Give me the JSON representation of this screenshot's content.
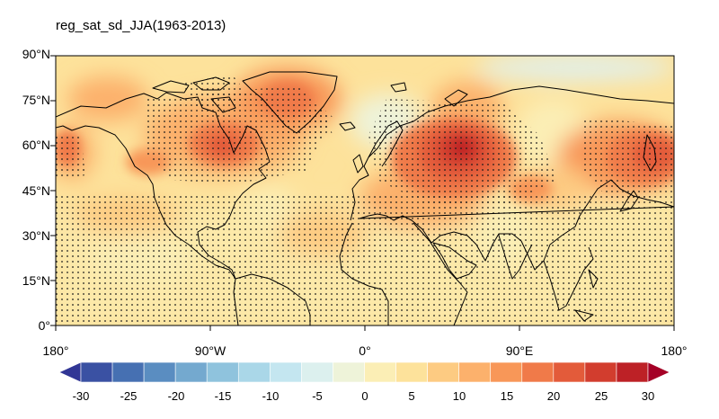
{
  "title": "reg_sat_sd_JJA(1963-2013)",
  "lat_labels": [
    "90°N",
    "75°N",
    "60°N",
    "45°N",
    "30°N",
    "15°N",
    "0°"
  ],
  "lon_labels": [
    "180°",
    "90°W",
    "0°",
    "90°E",
    "180°"
  ],
  "colorbar": {
    "ticks": [
      "-30",
      "-25",
      "-20",
      "-15",
      "-10",
      "-5",
      "0",
      "5",
      "10",
      "15",
      "20",
      "25",
      "30"
    ],
    "colors": [
      "#313695",
      "#3a51a3",
      "#4670b2",
      "#5a8dc1",
      "#74a9cf",
      "#8fc3dd",
      "#aad7e8",
      "#c4e6f0",
      "#dcf0ee",
      "#eef3d9",
      "#fbeeb5",
      "#fde29b",
      "#fdcb82",
      "#fcb16c",
      "#f89758",
      "#f07a49",
      "#e35b3a",
      "#d23d2e",
      "#bd2126",
      "#a50026"
    ]
  },
  "chart_data": {
    "type": "heatmap",
    "title": "reg_sat_sd_JJA(1963-2013)",
    "extent": {
      "lon": [
        -180,
        180
      ],
      "lat": [
        0,
        90
      ]
    },
    "contour_levels": [
      -30,
      -25,
      -20,
      -15,
      -10,
      -5,
      0,
      5,
      10,
      15,
      20,
      25,
      30
    ],
    "stippling": "significant areas marked with dots",
    "hotspots": [
      {
        "region": "Western Siberia",
        "lon": 62,
        "lat": 58,
        "value": 26
      },
      {
        "region": "Northeast Asia / Okhotsk",
        "lon": 152,
        "lat": 55,
        "value": 18
      },
      {
        "region": "Eastern Canada / Hudson Bay",
        "lon": -82,
        "lat": 58,
        "value": 16
      },
      {
        "region": "Greenland",
        "lon": -45,
        "lat": 76,
        "value": 12
      },
      {
        "region": "Central Asia",
        "lon": 95,
        "lat": 46,
        "value": 11
      },
      {
        "region": "Western North America",
        "lon": -110,
        "lat": 50,
        "value": 8
      },
      {
        "region": "Arctic Ocean",
        "lon": 60,
        "lat": 86,
        "value": -2
      }
    ]
  }
}
